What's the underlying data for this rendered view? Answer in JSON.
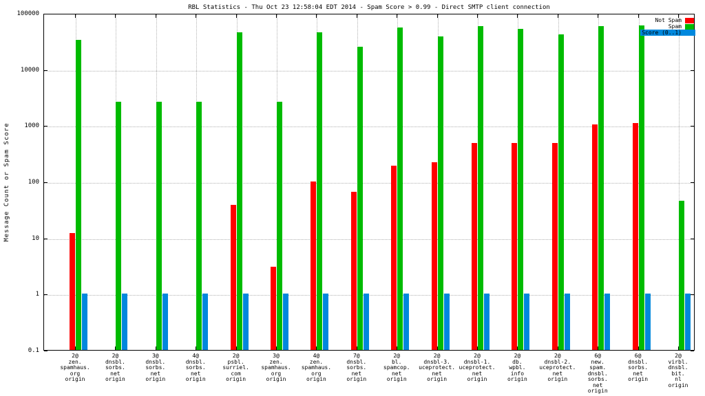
{
  "legend": [
    {
      "label": "Not Spam",
      "color": "#ff0000",
      "highlight": false
    },
    {
      "label": "Spam",
      "color": "#00bb00",
      "highlight": false
    },
    {
      "label": "Score (0..1)",
      "color": "#0088dd",
      "highlight": true
    }
  ],
  "chart_data": {
    "type": "bar",
    "title": "RBL Statistics - Thu Oct 23 12:58:04 EDT 2014 - Spam Score > 0.99 - Direct SMTP client connection",
    "xlabel": "",
    "ylabel": "Message Count or Spam Score",
    "yscale": "log",
    "ylim": [
      0.1,
      100000
    ],
    "yticks": [
      "0.1",
      "1",
      "10",
      "100",
      "1000",
      "10000",
      "100000"
    ],
    "grid": true,
    "legend_position": "top-right",
    "categories": [
      "2@\nzen.\nspamhaus.\norg\norigin",
      "2@\ndnsbl.\nsorbs.\nnet\norigin",
      "3@\ndnsbl.\nsorbs.\nnet\norigin",
      "4@\ndnsbl.\nsorbs.\nnet\norigin",
      "2@\npsbl.\nsurriel.\ncom\norigin",
      "3@\nzen.\nspamhaus.\norg\norigin",
      "4@\nzen.\nspamhaus.\norg\norigin",
      "7@\ndnsbl.\nsorbs.\nnet\norigin",
      "2@\nbl.\nspamcop.\nnet\norigin",
      "2@\ndnsbl-3.\nuceprotect.\nnet\norigin",
      "2@\ndnsbl-1.\nuceprotect.\nnet\norigin",
      "2@\ndb.\nwpbl.\ninfo\norigin",
      "2@\ndnsbl-2.\nuceprotect.\nnet\norigin",
      "6@\nnew.\nspam.\ndnsbl.\nsorbs.\nnet\norigin",
      "6@\ndnsbl.\nsorbs.\nnet\norigin",
      "2@\nvirbl.\ndnsbl.\nbit.\nnl\norigin"
    ],
    "series": [
      {
        "name": "Not Spam",
        "color": "#ff0000",
        "values": [
          12,
          0,
          0,
          0,
          38,
          3,
          100,
          65,
          190,
          220,
          490,
          490,
          480,
          1050,
          1100,
          0
        ]
      },
      {
        "name": "Spam",
        "color": "#00bb00",
        "values": [
          33000,
          2600,
          2600,
          2600,
          45000,
          2600,
          45000,
          25000,
          55000,
          38000,
          58000,
          53000,
          42000,
          58000,
          60000,
          45
        ]
      },
      {
        "name": "Score (0..1)",
        "color": "#0088dd",
        "values": [
          1,
          1,
          1,
          1,
          1,
          1,
          1,
          1,
          1,
          1,
          1,
          1,
          1,
          1,
          1,
          1
        ]
      }
    ]
  }
}
